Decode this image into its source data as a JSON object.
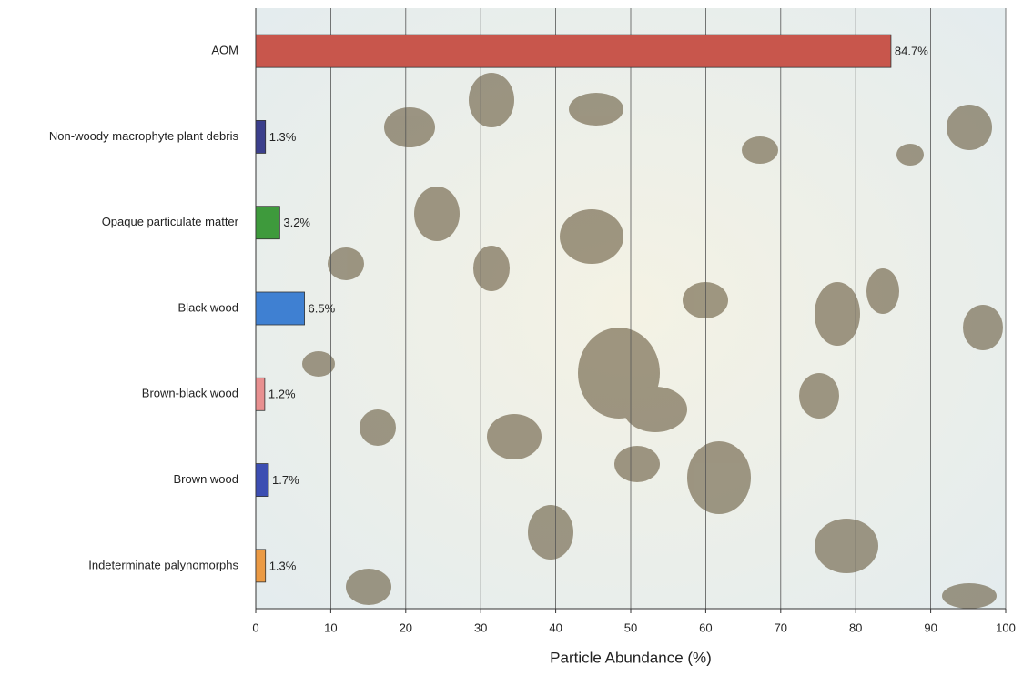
{
  "chart_data": {
    "type": "bar",
    "orientation": "horizontal",
    "x_label": "Particle Abundance (%)",
    "categories": [
      "AOM",
      "Non-woody macrophyte plant debris",
      "Opaque particulate matter",
      "Black wood",
      "Brown-black wood",
      "Brown wood",
      "Indeterminate palynomorphs"
    ],
    "values": [
      84.7,
      1.3,
      3.2,
      6.5,
      1.2,
      1.7,
      1.3
    ],
    "value_labels": [
      "84.7%",
      "1.3%",
      "3.2%",
      "6.5%",
      "1.2%",
      "1.7%",
      "1.3%"
    ],
    "colors": [
      "#c8564c",
      "#3b3f8c",
      "#3e9a3c",
      "#3f80d2",
      "#e89090",
      "#3c4eb2",
      "#eb9a44"
    ],
    "xlim": [
      0,
      100
    ],
    "xticks": [
      0,
      10,
      20,
      30,
      40,
      50,
      60,
      70,
      80,
      90,
      100
    ],
    "grid": true
  }
}
